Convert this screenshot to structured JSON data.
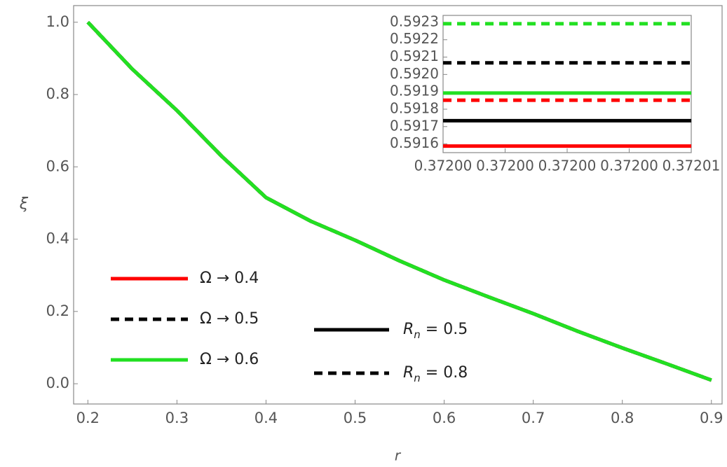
{
  "chart_data": [
    {
      "type": "line",
      "x_label": "r",
      "y_label": "ξ",
      "x": [
        0.2,
        0.25,
        0.3,
        0.35,
        0.4,
        0.45,
        0.5,
        0.55,
        0.6,
        0.65,
        0.7,
        0.75,
        0.8,
        0.85,
        0.9
      ],
      "series": [
        {
          "color": "#ff0000",
          "dash": false,
          "values": [
            1.0,
            0.87,
            0.756,
            0.63,
            0.515,
            0.45,
            0.397,
            0.34,
            0.287,
            0.24,
            0.194,
            0.145,
            0.099,
            0.055,
            0.01
          ]
        },
        {
          "color": "#ff0000",
          "dash": true,
          "values": [
            1.0,
            0.87,
            0.756,
            0.63,
            0.515,
            0.45,
            0.397,
            0.34,
            0.287,
            0.24,
            0.194,
            0.145,
            0.099,
            0.055,
            0.01
          ]
        },
        {
          "color": "#000000",
          "dash": false,
          "values": [
            1.0,
            0.87,
            0.756,
            0.63,
            0.515,
            0.45,
            0.397,
            0.34,
            0.287,
            0.24,
            0.194,
            0.145,
            0.099,
            0.055,
            0.01
          ]
        },
        {
          "color": "#000000",
          "dash": true,
          "values": [
            1.0,
            0.87,
            0.756,
            0.63,
            0.515,
            0.45,
            0.397,
            0.34,
            0.287,
            0.24,
            0.194,
            0.145,
            0.099,
            0.055,
            0.01
          ]
        },
        {
          "color": "#22e022",
          "dash": false,
          "values": [
            1.0,
            0.87,
            0.756,
            0.63,
            0.515,
            0.45,
            0.397,
            0.34,
            0.287,
            0.24,
            0.194,
            0.145,
            0.099,
            0.055,
            0.01
          ]
        },
        {
          "color": "#22e022",
          "dash": true,
          "values": [
            1.0,
            0.87,
            0.756,
            0.63,
            0.515,
            0.45,
            0.397,
            0.34,
            0.287,
            0.24,
            0.194,
            0.145,
            0.099,
            0.055,
            0.01
          ]
        }
      ],
      "xlim": [
        0.184,
        0.912
      ],
      "ylim": [
        -0.056,
        1.046
      ],
      "xticks": [
        0.2,
        0.3,
        0.4,
        0.5,
        0.6,
        0.7,
        0.8,
        0.9
      ],
      "yticks": [
        {
          "value": 0,
          "label": "0.0"
        },
        0.2,
        0.4,
        0.6,
        0.8,
        {
          "value": 1,
          "label": "1.0"
        }
      ],
      "legend_omega": [
        {
          "label": "Ω → 0.4",
          "color": "#ff0000"
        },
        {
          "label": "Ω → 0.5",
          "color": "#000000",
          "dash": true
        },
        {
          "label": "Ω → 0.6",
          "color": "#22e022"
        }
      ],
      "legend_rn": [
        {
          "symbol": "R",
          "sub": "n",
          "text": " = 0.5",
          "dash": false
        },
        {
          "symbol": "R",
          "sub": "n",
          "text": " = 0.8",
          "dash": true
        }
      ]
    },
    {
      "type": "line",
      "x": [
        0.372,
        0.37201
      ],
      "series": [
        {
          "color": "#ff0000",
          "dash": false,
          "values": [
            0.591588,
            0.591588
          ]
        },
        {
          "color": "#ff0000",
          "dash": true,
          "values": [
            0.591852,
            0.591852
          ]
        },
        {
          "color": "#000000",
          "dash": false,
          "values": [
            0.591734,
            0.591734
          ]
        },
        {
          "color": "#000000",
          "dash": true,
          "values": [
            0.592067,
            0.592067
          ]
        },
        {
          "color": "#22e022",
          "dash": false,
          "values": [
            0.591893,
            0.591893
          ]
        },
        {
          "color": "#22e022",
          "dash": true,
          "values": [
            0.592292,
            0.592292
          ]
        }
      ],
      "xlim": [
        0.372,
        0.37201
      ],
      "ylim": [
        0.59155,
        0.59234
      ],
      "xticks": [
        {
          "value": 0.372,
          "label": "0.37200"
        },
        {
          "value": 0.3720025,
          "label": "0.37200"
        },
        {
          "value": 0.372005,
          "label": "0.37200"
        },
        {
          "value": 0.3720075,
          "label": "0.37200"
        },
        {
          "value": 0.37201,
          "label": "0.37201"
        }
      ],
      "yticks": [
        {
          "value": 0.5916,
          "label": "0.5916"
        },
        {
          "value": 0.5917,
          "label": "0.5917"
        },
        {
          "value": 0.5918,
          "label": "0.5918"
        },
        {
          "value": 0.5919,
          "label": "0.5919"
        },
        {
          "value": 0.592,
          "label": "0.5920"
        },
        {
          "value": 0.5921,
          "label": "0.5921"
        },
        {
          "value": 0.5922,
          "label": "0.5922"
        },
        {
          "value": 0.5923,
          "label": "0.5923"
        }
      ]
    }
  ]
}
